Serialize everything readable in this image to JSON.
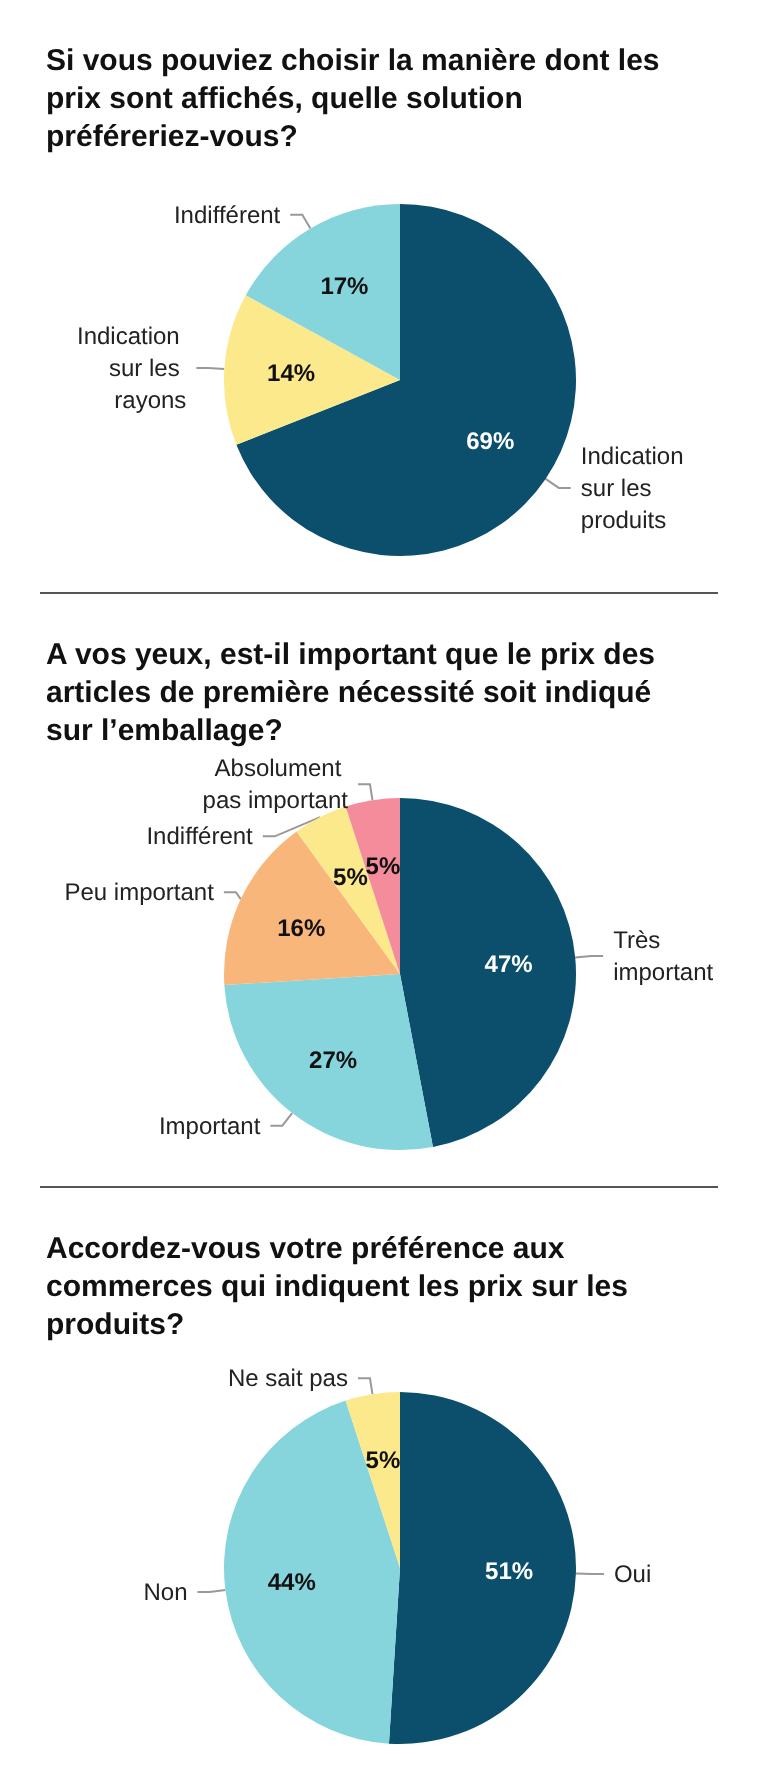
{
  "chart_data": [
    {
      "type": "pie",
      "title": "Si vous pouviez choisir la manière dont les prix sont affichés, quelle solution préféreriez-vous?",
      "categories": [
        "Indication sur les produits",
        "Indication sur les rayons",
        "Indifférent"
      ],
      "values": [
        69,
        14,
        17
      ],
      "colors": [
        "#0b4f6c",
        "#fbe98c",
        "#86d5dd"
      ],
      "value_labels": [
        "69%",
        "14%",
        "17%"
      ]
    },
    {
      "type": "pie",
      "title": "A vos yeux, est-il important que le prix des articles de première nécessité soit indiqué sur l’emballage?",
      "categories": [
        "Très important",
        "Important",
        "Peu important",
        "Indifférent",
        "Absolument pas important"
      ],
      "values": [
        47,
        27,
        16,
        5,
        5
      ],
      "colors": [
        "#0b4f6c",
        "#86d5dd",
        "#f9b67a",
        "#fbe98c",
        "#f48c9c"
      ],
      "value_labels": [
        "47%",
        "27%",
        "16%",
        "5%",
        "5%"
      ]
    },
    {
      "type": "pie",
      "title": "Accordez-vous votre préférence aux commerces qui indiquent les prix sur les produits?",
      "categories": [
        "Oui",
        "Non",
        "Ne sait pas"
      ],
      "values": [
        51,
        44,
        5
      ],
      "colors": [
        "#0b4f6c",
        "#86d5dd",
        "#fbe98c"
      ],
      "value_labels": [
        "51%",
        "44%",
        "5%"
      ]
    }
  ]
}
